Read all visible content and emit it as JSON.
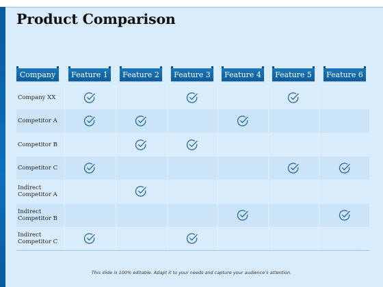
{
  "title": "Product Comparison",
  "headers": {
    "company": "Company",
    "features": [
      "Feature 1",
      "Feature 2",
      "Feature 3",
      "Feature 4",
      "Feature 5",
      "Feature 6"
    ]
  },
  "rows": [
    {
      "label": "Company XX",
      "checks": [
        true,
        false,
        true,
        false,
        true,
        false
      ]
    },
    {
      "label": "Competitor A",
      "checks": [
        true,
        true,
        false,
        true,
        false,
        false
      ]
    },
    {
      "label": "Competitor B",
      "checks": [
        false,
        true,
        true,
        false,
        false,
        false
      ]
    },
    {
      "label": "Competitor C",
      "checks": [
        true,
        false,
        false,
        false,
        true,
        true
      ]
    },
    {
      "label": "Indirect Competitor A",
      "checks": [
        false,
        true,
        false,
        false,
        false,
        false
      ]
    },
    {
      "label": "Indirect Competitor B",
      "checks": [
        false,
        false,
        false,
        true,
        false,
        true
      ]
    },
    {
      "label": "Indirect Competitor C",
      "checks": [
        true,
        false,
        true,
        false,
        false,
        false
      ]
    }
  ],
  "footer": "This slide is 100% editable. Adapt it to your needs and capture your audience's attention.",
  "colors": {
    "header": "#0d5c9a",
    "check": "#1b5f96",
    "accent_bar": "#0c6fbf",
    "background": "#d9ecfb"
  },
  "icons": {
    "check": "check-circle-icon"
  }
}
